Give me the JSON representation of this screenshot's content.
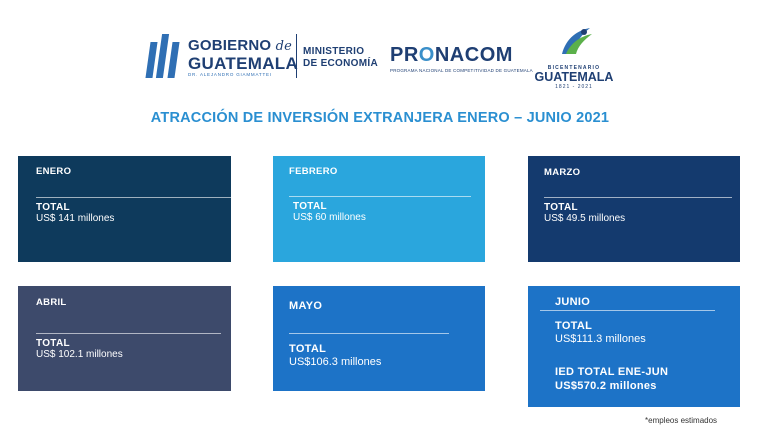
{
  "header": {
    "gobierno_line1": "GOBIERNO",
    "gobierno_de": "de",
    "gobierno_line2": "GUATEMALA",
    "gobierno_line3": "DR. ALEJANDRO GIAMMATTEI",
    "ministerio_line1": "MINISTERIO",
    "ministerio_line2": "DE ECONOMÍA",
    "pronacom_pr": "PR",
    "pronacom_o": "O",
    "pronacom_rest": "NACOM",
    "pronacom_sub": "PROGRAMA NACIONAL DE COMPETITIVIDAD DE GUATEMALA",
    "bicent_top": "BICENTENARIO",
    "bicent_mid": "GUATEMALA",
    "bicent_bot": "1821 - 2021"
  },
  "title": "ATRACCIÓN DE INVERSIÓN EXTRANJERA ENERO – JUNIO 2021",
  "cards": {
    "enero": {
      "month": "ENERO",
      "total_label": "TOTAL",
      "total_value": "US$ 141 millones"
    },
    "febrero": {
      "month": "FEBRERO",
      "total_label": "TOTAL",
      "total_value": "US$ 60 millones"
    },
    "marzo": {
      "month": "MARZO",
      "total_label": "TOTAL",
      "total_value": "US$ 49.5 millones"
    },
    "abril": {
      "month": "ABRIL",
      "total_label": "TOTAL",
      "total_value": "US$ 102.1 millones"
    },
    "mayo": {
      "month": "MAYO",
      "total_label": "TOTAL",
      "total_value": "US$106.3 millones"
    },
    "junio": {
      "month": "JUNIO",
      "total_label": "TOTAL",
      "total_value": "US$111.3 millones",
      "ied_label": "IED TOTAL ENE-JUN",
      "ied_value": "US$570.2 millones"
    }
  },
  "footnote": "*empleos estimados",
  "colors": {
    "enero": "#0e3a5c",
    "febrero": "#2aa6dd",
    "marzo": "#143a6e",
    "abril": "#3d4a6b",
    "mayo": "#1d73c7",
    "junio": "#1d73c7",
    "title": "#2a8fd1"
  }
}
